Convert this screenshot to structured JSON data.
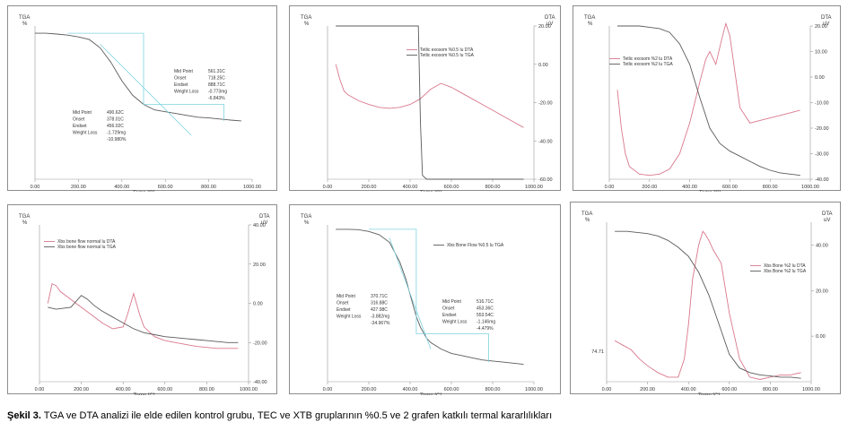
{
  "caption": {
    "label": "Şekil 3.",
    "text": "TGA ve DTA analizi ile elde edilen kontrol grubu, TEC ve XTB gruplarının  %0.5 ve 2 grafen katkılı termal kararlılıkları"
  },
  "chart_data": [
    {
      "type": "line",
      "xlabel": "Temp [C]",
      "x_ticks": [
        "0.00",
        "200.00",
        "400.00",
        "600.00",
        "800.00",
        "1000.00"
      ],
      "xlim": [
        0,
        1000
      ],
      "left_axis": {
        "label": "TGA",
        "unit": "%",
        "ticks": []
      },
      "series": [
        {
          "role": "TGA",
          "x": [
            0,
            50,
            100,
            150,
            200,
            250,
            300,
            350,
            400,
            450,
            500,
            550,
            600,
            650,
            700,
            750,
            800,
            850,
            900,
            950
          ],
          "y": [
            100,
            100,
            99.8,
            99.5,
            99.0,
            98.3,
            96.0,
            92.0,
            87.0,
            83.0,
            80.5,
            79.0,
            78.5,
            78.0,
            77.5,
            77.0,
            76.8,
            76.5,
            76.2,
            76.0
          ]
        }
      ],
      "annotations": [
        {
          "lines": [
            [
              "Mid Point",
              "490.62C"
            ],
            [
              "Onset",
              "378.01C"
            ],
            [
              "Endset",
              "456.02C"
            ],
            [
              "Weight Loss",
              "-1.729mg"
            ],
            [
              "",
              "-10.980%"
            ]
          ]
        },
        {
          "lines": [
            [
              "Mid Point",
              "561.31C"
            ],
            [
              "Onset",
              "718.25C"
            ],
            [
              "Endset",
              "888.71C"
            ],
            [
              "Weight Loss",
              "-0.773mg"
            ],
            [
              "",
              "-6.843%"
            ]
          ]
        }
      ]
    },
    {
      "type": "line",
      "xlabel": "Temp [C]",
      "x_ticks": [
        "0.00",
        "200.00",
        "400.00",
        "600.00",
        "800.00",
        "1000.00"
      ],
      "xlim": [
        0,
        1000
      ],
      "left_axis": {
        "label": "TGA",
        "unit": "%",
        "ticks": []
      },
      "right_axis": {
        "label": "DTA",
        "unit": "uV",
        "ticks": [
          "20.00",
          "0.00",
          "-20.00",
          "-40.00",
          "-60.00"
        ],
        "ylim": [
          -60,
          20
        ]
      },
      "legend": [
        "Tetlic exosom %0.5 lu DTA",
        "Tetlic exosom %0.5 lu TGA"
      ],
      "series": [
        {
          "name": "Tetlic exosom %0.5 lu DTA",
          "axis": "right",
          "x": [
            40,
            60,
            80,
            100,
            150,
            200,
            250,
            300,
            350,
            400,
            450,
            500,
            550,
            600,
            650,
            700,
            750,
            800,
            850,
            900,
            950
          ],
          "y": [
            0,
            -8,
            -14,
            -16,
            -19,
            -21,
            -22.5,
            -23,
            -22.5,
            -21,
            -18,
            -13,
            -10,
            -12,
            -15,
            -18,
            -21,
            -24,
            -27,
            -30,
            -33
          ]
        },
        {
          "name": "Tetlic exosom %0.5 lu TGA",
          "axis": "right",
          "x": [
            40,
            440,
            450,
            460,
            480,
            600,
            800,
            950
          ],
          "y": [
            20,
            20,
            -30,
            -58,
            -60,
            -60,
            -60,
            -60
          ]
        }
      ]
    },
    {
      "type": "line",
      "xlabel": "Temp [C]",
      "x_ticks": [
        "0.00",
        "200.00",
        "400.00",
        "600.00",
        "800.00",
        "1000.00"
      ],
      "xlim": [
        0,
        1000
      ],
      "left_axis": {
        "label": "TGA",
        "unit": "%",
        "ticks": []
      },
      "right_axis": {
        "label": "DTA",
        "unit": "uV",
        "ticks": [
          "20.00",
          "10.00",
          "0.00",
          "-10.00",
          "-20.00",
          "-30.00",
          "-40.00"
        ],
        "ylim": [
          -40,
          20
        ]
      },
      "legend": [
        "Tetlic exosom %2 lu DTA",
        "Tetlic exosom %2 lu TGA"
      ],
      "series": [
        {
          "name": "Tetlic exosom %2 lu DTA",
          "axis": "right",
          "x": [
            40,
            60,
            80,
            100,
            150,
            200,
            250,
            300,
            350,
            400,
            450,
            480,
            500,
            530,
            560,
            580,
            600,
            650,
            700,
            750,
            800,
            850,
            900,
            950
          ],
          "y": [
            -5,
            -20,
            -30,
            -35,
            -38,
            -38.5,
            -38,
            -36,
            -30,
            -18,
            -2,
            7,
            10,
            5,
            15,
            21,
            16,
            -12,
            -18,
            -17,
            -16,
            -15,
            -14,
            -13
          ]
        },
        {
          "name": "Tetlic exosom %2 lu TGA",
          "axis": "right",
          "x": [
            40,
            100,
            150,
            200,
            250,
            300,
            350,
            400,
            450,
            500,
            550,
            600,
            650,
            700,
            750,
            800,
            850,
            900,
            950
          ],
          "y": [
            20,
            20,
            20,
            19.5,
            19,
            17.5,
            13,
            5,
            -8,
            -20,
            -26,
            -29,
            -31,
            -33,
            -35,
            -36.5,
            -37.5,
            -38,
            -38.5
          ]
        }
      ]
    },
    {
      "type": "line",
      "xlabel": "Temp [C]",
      "x_ticks": [
        "0.00",
        "200.00",
        "400.00",
        "600.00",
        "800.00",
        "1000.00"
      ],
      "xlim": [
        0,
        1000
      ],
      "left_axis": {
        "label": "TGA",
        "unit": "%",
        "ticks": []
      },
      "right_axis": {
        "label": "DTA",
        "unit": "uV",
        "ticks": [
          "40.00",
          "20.00",
          "0.00",
          "-20.00",
          "-40.00"
        ],
        "ylim": [
          -40,
          40
        ]
      },
      "legend": [
        "Xbs bone flow normal lu DTA",
        "Xbs bone flow normal lu TGA"
      ],
      "series": [
        {
          "name": "Xbs bone flow normal lu DTA",
          "axis": "right",
          "x": [
            40,
            60,
            80,
            100,
            150,
            200,
            250,
            300,
            350,
            400,
            420,
            450,
            480,
            500,
            550,
            600,
            650,
            700,
            750,
            800,
            850,
            900,
            950
          ],
          "y": [
            0,
            10,
            9,
            6,
            2,
            -2,
            -6,
            -10,
            -13,
            -12,
            -6,
            5,
            -6,
            -12,
            -17,
            -19,
            -20,
            -21,
            -22,
            -22.5,
            -23,
            -23,
            -23
          ]
        },
        {
          "name": "Xbs bone flow normal lu TGA",
          "axis": "right",
          "x": [
            40,
            80,
            150,
            200,
            230,
            260,
            300,
            350,
            400,
            450,
            500,
            550,
            600,
            650,
            700,
            750,
            800,
            850,
            900,
            950
          ],
          "y": [
            -2,
            -3,
            -2,
            4,
            2,
            -1,
            -4,
            -7,
            -10,
            -13,
            -15,
            -16,
            -17,
            -17.5,
            -18,
            -18.5,
            -19,
            -19.5,
            -20,
            -20
          ]
        }
      ]
    },
    {
      "type": "line",
      "xlabel": "Temp [C]",
      "x_ticks": [
        "0.00",
        "200.00",
        "400.00",
        "600.00",
        "800.00",
        "1000.00"
      ],
      "xlim": [
        0,
        1000
      ],
      "left_axis": {
        "label": "TGA",
        "unit": "%",
        "ticks": []
      },
      "legend": [
        "Xbs Bone Flow %0.5 lu TGA"
      ],
      "series": [
        {
          "name": "Xbs Bone Flow %0.5 lu TGA",
          "x": [
            40,
            100,
            150,
            200,
            250,
            300,
            350,
            380,
            400,
            430,
            450,
            480,
            500,
            550,
            600,
            650,
            700,
            750,
            800,
            850,
            900,
            950
          ],
          "y": [
            100,
            100,
            99.8,
            99,
            97.5,
            94,
            85,
            77,
            70,
            60,
            55,
            50,
            48,
            45,
            43,
            42,
            41,
            40,
            39.5,
            39,
            38.5,
            38
          ]
        }
      ],
      "annotations": [
        {
          "lines": [
            [
              "Mid Point",
              "370.71C"
            ],
            [
              "Onset",
              "316.88C"
            ],
            [
              "Endset",
              "427.98C"
            ],
            [
              "Weight Loss",
              "-3.882mg"
            ],
            [
              "",
              "-34.967%"
            ]
          ]
        },
        {
          "lines": [
            [
              "Mid Point",
              "516.71C"
            ],
            [
              "Onset",
              "453.36C"
            ],
            [
              "Endset",
              "553.54C"
            ],
            [
              "Weight Loss",
              "-1.146mg"
            ],
            [
              "",
              "-4.479%"
            ]
          ]
        }
      ]
    },
    {
      "type": "line",
      "xlabel": "Temp [C]",
      "x_ticks": [
        "0.00",
        "200.00",
        "400.00",
        "600.00",
        "800.00",
        "1000.00"
      ],
      "xlim": [
        0,
        1000
      ],
      "left_axis": {
        "label": "TGA",
        "unit": "%",
        "ticks": [
          "74.71"
        ]
      },
      "right_axis": {
        "label": "DTA",
        "unit": "uV",
        "ticks": [
          "40.00",
          "20.00",
          "0.00"
        ],
        "ylim": [
          -20,
          50
        ]
      },
      "legend": [
        "Xbs Bone %2 lu DTA",
        "Xbs Bone %2 lu TGA"
      ],
      "series": [
        {
          "name": "Xbs Bone %2 lu DTA",
          "axis": "right",
          "x": [
            40,
            80,
            120,
            160,
            200,
            250,
            300,
            350,
            380,
            400,
            420,
            450,
            470,
            480,
            500,
            520,
            540,
            560,
            600,
            650,
            700,
            750,
            800,
            850,
            900,
            950
          ],
          "y": [
            -2,
            -4,
            -6,
            -10,
            -13,
            -16,
            -18,
            -18,
            -10,
            5,
            25,
            40,
            46,
            45,
            42,
            38,
            35,
            32,
            10,
            -10,
            -18,
            -19,
            -18,
            -17,
            -17,
            -16
          ]
        },
        {
          "name": "Xbs Bone %2 lu TGA",
          "axis": "right",
          "x": [
            40,
            100,
            150,
            200,
            250,
            300,
            350,
            400,
            450,
            500,
            550,
            600,
            650,
            700,
            750,
            800,
            850,
            900,
            950
          ],
          "y": [
            46,
            46,
            45.5,
            45,
            44,
            42,
            39,
            35,
            28,
            18,
            5,
            -8,
            -14,
            -16,
            -17,
            -17.5,
            -18,
            -18,
            -18.5
          ]
        }
      ]
    }
  ]
}
